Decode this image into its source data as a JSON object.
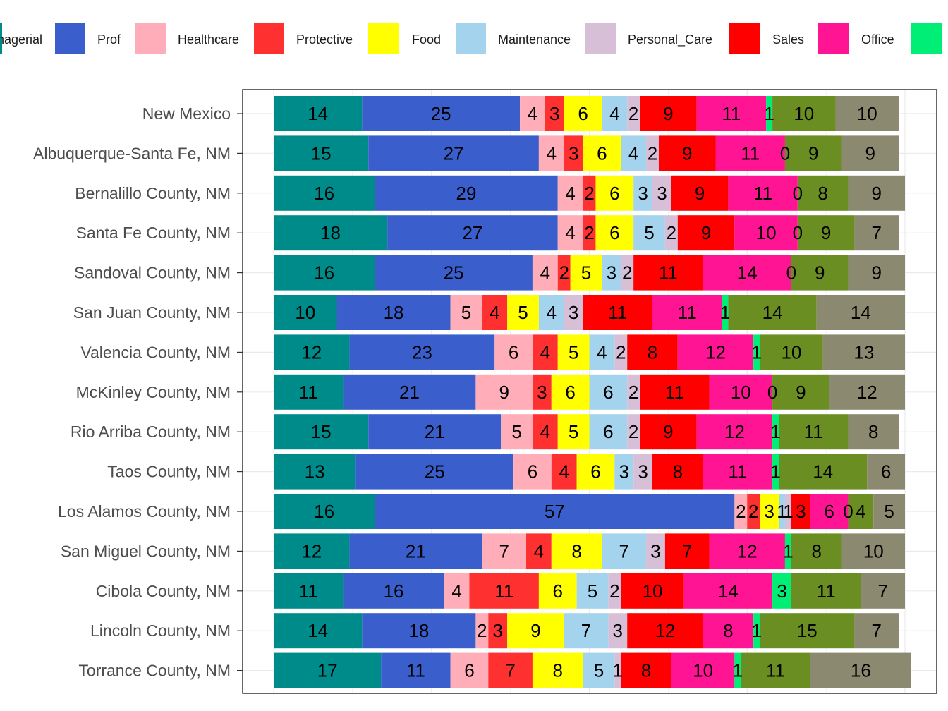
{
  "chart_data": {
    "type": "bar",
    "orientation": "horizontal",
    "stacked": true,
    "stack_total": "100",
    "legend_placement": "top",
    "grid": true,
    "categories": [
      "New Mexico",
      "Albuquerque-Santa Fe, NM",
      "Bernalillo County, NM",
      "Santa Fe County, NM",
      "Sandoval County, NM",
      "San Juan County, NM",
      "Valencia County, NM",
      "McKinley County, NM",
      "Rio Arriba County, NM",
      "Taos County, NM",
      "Los Alamos County, NM",
      "San Miguel County, NM",
      "Cibola County, NM",
      "Lincoln County, NM",
      "Torrance County, NM"
    ],
    "series": [
      {
        "name": "Managerial",
        "legend_label": "nagerial",
        "color": "#008B8B",
        "values": [
          14,
          15,
          16,
          18,
          16,
          10,
          12,
          11,
          15,
          13,
          16,
          12,
          11,
          14,
          17
        ]
      },
      {
        "name": "Prof",
        "color": "#3A5FCD",
        "values": [
          25,
          27,
          29,
          27,
          25,
          18,
          23,
          21,
          21,
          25,
          57,
          21,
          16,
          18,
          11
        ]
      },
      {
        "name": "Healthcare",
        "color": "#FFAEB9",
        "values": [
          4,
          4,
          4,
          4,
          4,
          5,
          6,
          9,
          5,
          6,
          2,
          7,
          4,
          2,
          6
        ]
      },
      {
        "name": "Protective",
        "color": "#FF3030",
        "values": [
          3,
          3,
          2,
          2,
          2,
          4,
          4,
          3,
          4,
          4,
          2,
          4,
          11,
          3,
          7
        ]
      },
      {
        "name": "Food",
        "color": "#FFFF00",
        "values": [
          6,
          6,
          6,
          6,
          5,
          5,
          5,
          6,
          5,
          6,
          3,
          8,
          6,
          9,
          8
        ]
      },
      {
        "name": "Maintenance",
        "color": "#A4D3EE",
        "values": [
          4,
          4,
          3,
          5,
          3,
          4,
          4,
          6,
          6,
          3,
          1,
          7,
          5,
          7,
          5
        ]
      },
      {
        "name": "Personal_Care",
        "color": "#D8BFD8",
        "values": [
          2,
          2,
          3,
          2,
          2,
          3,
          2,
          2,
          2,
          3,
          1,
          3,
          2,
          3,
          1
        ]
      },
      {
        "name": "Sales",
        "color": "#FF0000",
        "values": [
          9,
          9,
          9,
          9,
          11,
          11,
          8,
          11,
          9,
          8,
          3,
          7,
          10,
          12,
          8
        ]
      },
      {
        "name": "Office",
        "color": "#FF1493",
        "values": [
          11,
          11,
          11,
          10,
          14,
          11,
          12,
          10,
          12,
          11,
          6,
          12,
          14,
          8,
          10
        ]
      },
      {
        "name": "",
        "color": "#00EE76",
        "values": [
          1,
          0,
          0,
          0,
          0,
          1,
          1,
          0,
          1,
          1,
          0,
          1,
          3,
          1,
          1
        ]
      },
      {
        "name": "",
        "color": "#6B8E23",
        "values": [
          10,
          9,
          8,
          9,
          9,
          14,
          10,
          9,
          11,
          14,
          4,
          8,
          11,
          15,
          11
        ]
      },
      {
        "name": "",
        "color": "#8B8970",
        "values": [
          10,
          9,
          9,
          7,
          9,
          14,
          13,
          12,
          8,
          6,
          5,
          10,
          7,
          7,
          16
        ]
      }
    ]
  }
}
